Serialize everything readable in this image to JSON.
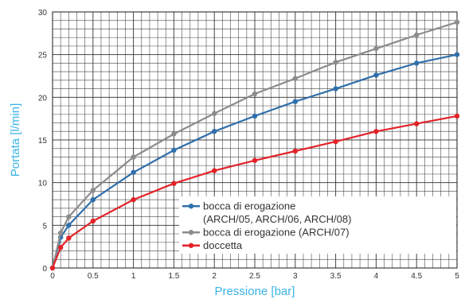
{
  "chart_data": {
    "type": "line",
    "title": "",
    "xlabel": "Pressione [bar]",
    "ylabel": "Portata [l/min]",
    "xlim": [
      0,
      5
    ],
    "ylim": [
      0,
      30
    ],
    "x_ticks": [
      "0",
      "0.5",
      "1",
      "1.5",
      "2",
      "2.5",
      "3",
      "3.5",
      "4",
      "4.5",
      "5"
    ],
    "y_ticks": [
      "0",
      "5",
      "10",
      "15",
      "20",
      "25",
      "30"
    ],
    "grid": true,
    "legend_position": "bottom-right",
    "series": [
      {
        "name": "bocca di erogazione (ARCH/05,  ARCH/06, ARCH/08)",
        "name_lines": [
          "bocca di erogazione",
          "(ARCH/05,  ARCH/06, ARCH/08)"
        ],
        "color": "#2f6fac",
        "x": [
          0,
          0.1,
          0.2,
          0.5,
          1,
          1.5,
          2,
          2.5,
          3,
          3.5,
          4,
          4.5,
          5
        ],
        "y": [
          0,
          3.6,
          5.0,
          8.0,
          11.2,
          13.8,
          16.0,
          17.8,
          19.5,
          21.0,
          22.6,
          24.0,
          25.0
        ]
      },
      {
        "name": "bocca di erogazione (ARCH/07)",
        "name_lines": [
          "bocca di erogazione (ARCH/07)"
        ],
        "color": "#8c8c8c",
        "x": [
          0,
          0.1,
          0.2,
          0.5,
          1,
          1.5,
          2,
          2.5,
          3,
          3.5,
          4,
          4.5,
          5
        ],
        "y": [
          0,
          4.1,
          6.0,
          9.1,
          13.0,
          15.7,
          18.1,
          20.4,
          22.2,
          24.1,
          25.7,
          27.3,
          28.8
        ]
      },
      {
        "name": "doccetta",
        "name_lines": [
          "doccetta"
        ],
        "color": "#e32228",
        "x": [
          0,
          0.1,
          0.2,
          0.5,
          1,
          1.5,
          2,
          2.5,
          3,
          3.5,
          4,
          4.5,
          5
        ],
        "y": [
          0,
          2.4,
          3.5,
          5.5,
          8.0,
          9.9,
          11.4,
          12.6,
          13.7,
          14.8,
          16.0,
          16.9,
          17.8
        ]
      }
    ]
  }
}
